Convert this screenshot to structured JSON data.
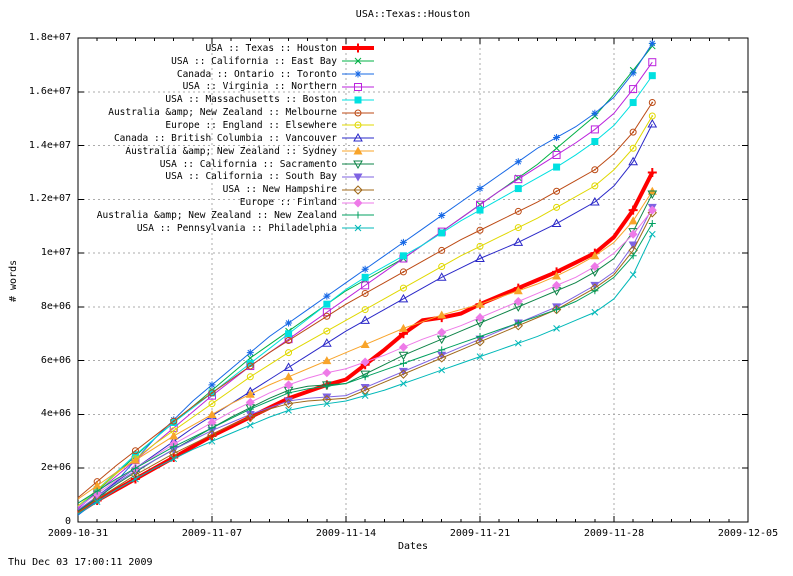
{
  "title": "USA::Texas::Houston",
  "axes": {
    "ylabel": "# words",
    "xlabel": "Dates",
    "timestamp": "Thu Dec 03 17:00:11 2009",
    "x_tick_labels": [
      "2009-10-31",
      "2009-11-07",
      "2009-11-14",
      "2009-11-21",
      "2009-11-28",
      "2009-12-05"
    ],
    "y_tick_labels": [
      "0",
      "2e+06",
      "4e+06",
      "6e+06",
      "8e+06",
      "1e+07",
      "1.2e+07",
      "1.4e+07",
      "1.6e+07",
      "1.8e+07"
    ]
  },
  "chart_data": {
    "type": "line",
    "title": "USA::Texas::Houston",
    "xlabel": "Dates",
    "ylabel": "# words",
    "ylim": [
      0,
      18000000
    ],
    "xlim": [
      "2009-10-31",
      "2009-12-05"
    ],
    "grid": true,
    "legend_position": "inside top-left, right-aligned labels, no border",
    "values_unit": "millions of words (multiply by 1e6)",
    "x_dates": [
      "2009-10-31",
      "2009-11-01",
      "2009-11-02",
      "2009-11-03",
      "2009-11-04",
      "2009-11-05",
      "2009-11-06",
      "2009-11-07",
      "2009-11-08",
      "2009-11-09",
      "2009-11-10",
      "2009-11-11",
      "2009-11-12",
      "2009-11-13",
      "2009-11-14",
      "2009-11-15",
      "2009-11-16",
      "2009-11-17",
      "2009-11-18",
      "2009-11-19",
      "2009-11-20",
      "2009-11-21",
      "2009-11-22",
      "2009-11-23",
      "2009-11-24",
      "2009-11-25",
      "2009-11-26",
      "2009-11-27",
      "2009-11-28",
      "2009-11-29",
      "2009-11-30"
    ],
    "series": [
      {
        "name": "USA :: Texas :: Houston",
        "color": "#ff0000",
        "marker": "plus",
        "line_width": 4,
        "values_m": [
          0.35,
          0.8,
          1.2,
          1.6,
          2.0,
          2.4,
          2.8,
          3.2,
          3.55,
          3.9,
          4.25,
          4.6,
          4.85,
          5.1,
          5.3,
          5.85,
          6.4,
          7.0,
          7.5,
          7.6,
          7.75,
          8.1,
          8.4,
          8.7,
          9.0,
          9.3,
          9.65,
          10.0,
          10.6,
          11.6,
          13.0
        ]
      },
      {
        "name": "USA :: California :: East Bay",
        "color": "#00b045",
        "marker": "cross",
        "line_width": 1,
        "values_m": [
          0.5,
          1.15,
          1.8,
          2.45,
          3.1,
          3.7,
          4.3,
          4.9,
          5.5,
          6.1,
          6.6,
          7.1,
          7.6,
          8.1,
          8.6,
          9.0,
          9.4,
          9.8,
          10.3,
          10.8,
          11.3,
          11.8,
          12.3,
          12.8,
          13.3,
          13.9,
          14.5,
          15.1,
          15.9,
          16.8,
          17.7
        ]
      },
      {
        "name": "Canada :: Ontario :: Toronto",
        "color": "#1668e6",
        "marker": "asterisk",
        "line_width": 1,
        "values_m": [
          0.25,
          0.8,
          1.5,
          2.3,
          3.1,
          3.8,
          4.5,
          5.1,
          5.7,
          6.3,
          6.9,
          7.4,
          7.9,
          8.4,
          8.9,
          9.4,
          9.9,
          10.4,
          10.9,
          11.4,
          11.9,
          12.4,
          12.9,
          13.4,
          13.9,
          14.3,
          14.7,
          15.2,
          15.8,
          16.7,
          17.8
        ]
      },
      {
        "name": "USA :: Virginia :: Northern",
        "color": "#bb22dd",
        "marker": "square-open",
        "line_width": 1,
        "values_m": [
          0.5,
          1.1,
          1.7,
          2.3,
          2.9,
          3.5,
          4.1,
          4.7,
          5.25,
          5.8,
          6.3,
          6.8,
          7.3,
          7.8,
          8.3,
          8.8,
          9.3,
          9.8,
          10.3,
          10.8,
          11.3,
          11.8,
          12.3,
          12.75,
          13.2,
          13.65,
          14.1,
          14.6,
          15.2,
          16.1,
          17.1
        ]
      },
      {
        "name": "USA :: Massachusetts :: Boston",
        "color": "#00e0e0",
        "marker": "square-filled",
        "line_width": 1,
        "values_m": [
          0.55,
          1.2,
          1.85,
          2.5,
          3.1,
          3.7,
          4.25,
          4.8,
          5.35,
          5.9,
          6.45,
          7.0,
          7.55,
          8.1,
          8.65,
          9.1,
          9.5,
          9.9,
          10.3,
          10.75,
          11.2,
          11.6,
          12.0,
          12.4,
          12.8,
          13.2,
          13.65,
          14.15,
          14.75,
          15.6,
          16.6
        ]
      },
      {
        "name": "Australia &amp; New Zealand :: Melbourne",
        "color": "#bc4a14",
        "marker": "circle-dot",
        "line_width": 1,
        "values_m": [
          0.9,
          1.5,
          2.1,
          2.65,
          3.2,
          3.75,
          4.3,
          4.8,
          5.3,
          5.8,
          6.3,
          6.75,
          7.2,
          7.65,
          8.1,
          8.5,
          8.9,
          9.3,
          9.7,
          10.1,
          10.5,
          10.85,
          11.2,
          11.55,
          11.9,
          12.3,
          12.7,
          13.1,
          13.7,
          14.5,
          15.6
        ]
      },
      {
        "name": "Europe :: England :: Elsewhere",
        "color": "#e0d800",
        "marker": "circle-dot",
        "line_width": 1,
        "values_m": [
          0.6,
          1.2,
          1.8,
          2.35,
          2.9,
          3.4,
          3.9,
          4.4,
          4.9,
          5.4,
          5.85,
          6.3,
          6.7,
          7.1,
          7.5,
          7.9,
          8.3,
          8.7,
          9.1,
          9.5,
          9.9,
          10.25,
          10.6,
          10.95,
          11.3,
          11.7,
          12.1,
          12.5,
          13.1,
          13.9,
          15.1
        ]
      },
      {
        "name": "Canada :: British Columbia :: Vancouver",
        "color": "#2a28c8",
        "marker": "triangle-up-open",
        "line_width": 1,
        "values_m": [
          0.4,
          0.95,
          1.5,
          2.0,
          2.5,
          3.0,
          3.5,
          3.95,
          4.4,
          4.85,
          5.3,
          5.75,
          6.2,
          6.65,
          7.1,
          7.5,
          7.9,
          8.3,
          8.7,
          9.1,
          9.45,
          9.8,
          10.1,
          10.4,
          10.75,
          11.1,
          11.5,
          11.9,
          12.5,
          13.4,
          14.8
        ]
      },
      {
        "name": "Australia &amp; New Zealand :: Sydney",
        "color": "#f8a42a",
        "marker": "triangle-up-filled",
        "line_width": 1,
        "values_m": [
          0.85,
          1.35,
          1.85,
          2.3,
          2.75,
          3.2,
          3.6,
          4.0,
          4.4,
          4.75,
          5.1,
          5.4,
          5.7,
          6.0,
          6.3,
          6.6,
          6.9,
          7.2,
          7.45,
          7.7,
          7.9,
          8.1,
          8.35,
          8.6,
          8.85,
          9.15,
          9.5,
          9.9,
          10.4,
          11.2,
          12.3
        ]
      },
      {
        "name": "USA :: California :: Sacramento",
        "color": "#0e8448",
        "marker": "triangle-down-open",
        "line_width": 1,
        "values_m": [
          0.4,
          0.9,
          1.4,
          1.85,
          2.3,
          2.7,
          3.1,
          3.5,
          3.9,
          4.25,
          4.6,
          4.9,
          5.05,
          5.1,
          5.15,
          5.5,
          5.85,
          6.2,
          6.5,
          6.8,
          7.1,
          7.4,
          7.7,
          8.0,
          8.3,
          8.6,
          8.9,
          9.3,
          9.8,
          10.8,
          12.2
        ]
      },
      {
        "name": "USA :: California :: South Bay",
        "color": "#7f63e2",
        "marker": "triangle-down-filled",
        "line_width": 1,
        "values_m": [
          0.45,
          0.95,
          1.45,
          1.9,
          2.3,
          2.7,
          3.05,
          3.4,
          3.7,
          4.0,
          4.25,
          4.5,
          4.6,
          4.65,
          4.7,
          5.0,
          5.3,
          5.6,
          5.9,
          6.2,
          6.5,
          6.8,
          7.1,
          7.4,
          7.7,
          8.0,
          8.4,
          8.8,
          9.3,
          10.3,
          11.7
        ]
      },
      {
        "name": "USA :: New Hampshire",
        "color": "#a06818",
        "marker": "diamond-open",
        "line_width": 1,
        "values_m": [
          0.35,
          0.85,
          1.3,
          1.75,
          2.15,
          2.55,
          2.9,
          3.25,
          3.6,
          3.9,
          4.2,
          4.4,
          4.5,
          4.55,
          4.6,
          4.9,
          5.2,
          5.5,
          5.8,
          6.1,
          6.4,
          6.7,
          7.0,
          7.3,
          7.6,
          7.9,
          8.3,
          8.7,
          9.2,
          10.1,
          11.5
        ]
      },
      {
        "name": "Europe :: Finland",
        "color": "#ee7ae8",
        "marker": "diamond-filled",
        "line_width": 1,
        "values_m": [
          0.55,
          1.05,
          1.55,
          2.0,
          2.45,
          2.9,
          3.3,
          3.7,
          4.1,
          4.45,
          4.8,
          5.1,
          5.35,
          5.55,
          5.7,
          5.95,
          6.2,
          6.5,
          6.8,
          7.05,
          7.3,
          7.6,
          7.9,
          8.2,
          8.5,
          8.8,
          9.1,
          9.5,
          10.0,
          10.7,
          11.6
        ]
      },
      {
        "name": "Australia &amp; New Zealand :: New Zealand",
        "color": "#00a060",
        "marker": "plus",
        "line_width": 1,
        "values_m": [
          0.7,
          1.15,
          1.6,
          2.0,
          2.4,
          2.8,
          3.15,
          3.5,
          3.85,
          4.2,
          4.5,
          4.8,
          4.95,
          5.05,
          5.15,
          5.4,
          5.65,
          5.9,
          6.15,
          6.4,
          6.65,
          6.9,
          7.15,
          7.4,
          7.65,
          7.9,
          8.2,
          8.6,
          9.1,
          9.9,
          11.1
        ]
      },
      {
        "name": "USA :: Pennsylvania :: Philadelphia",
        "color": "#00b8b8",
        "marker": "cross",
        "line_width": 1,
        "values_m": [
          0.3,
          0.75,
          1.2,
          1.6,
          2.0,
          2.35,
          2.7,
          3.0,
          3.3,
          3.6,
          3.9,
          4.15,
          4.3,
          4.4,
          4.5,
          4.7,
          4.9,
          5.15,
          5.4,
          5.65,
          5.9,
          6.15,
          6.4,
          6.65,
          6.9,
          7.2,
          7.5,
          7.8,
          8.3,
          9.2,
          10.7
        ]
      }
    ]
  }
}
